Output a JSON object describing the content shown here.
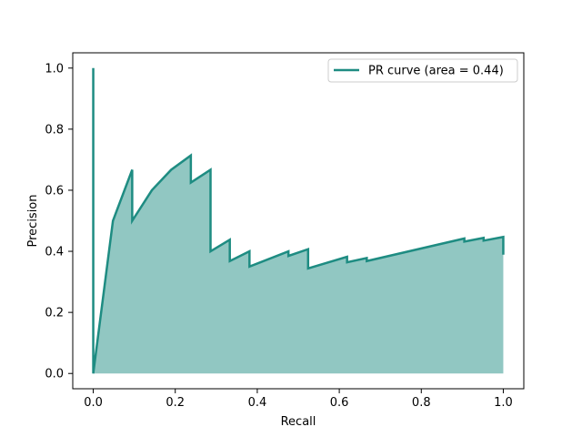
{
  "chart_data": {
    "type": "area",
    "title": "",
    "xlabel": "Recall",
    "ylabel": "Precision",
    "xlim": [
      -0.05,
      1.05
    ],
    "ylim": [
      -0.05,
      1.05
    ],
    "xticks": [
      "0.0",
      "0.2",
      "0.4",
      "0.6",
      "0.8",
      "1.0"
    ],
    "yticks": [
      "0.0",
      "0.2",
      "0.4",
      "0.6",
      "0.8",
      "1.0"
    ],
    "grid": false,
    "legend_position": "top-right",
    "series": [
      {
        "name": "PR curve (area = 0.44)",
        "color": "#1e8c82",
        "fill_color": "#91c7c2",
        "points": [
          [
            0.0,
            1.0
          ],
          [
            0.0,
            0.0
          ],
          [
            0.048,
            0.5
          ],
          [
            0.095,
            0.667
          ],
          [
            0.095,
            0.5
          ],
          [
            0.143,
            0.6
          ],
          [
            0.19,
            0.667
          ],
          [
            0.238,
            0.714
          ],
          [
            0.238,
            0.625
          ],
          [
            0.286,
            0.667
          ],
          [
            0.286,
            0.4
          ],
          [
            0.333,
            0.438
          ],
          [
            0.333,
            0.368
          ],
          [
            0.381,
            0.4
          ],
          [
            0.381,
            0.35
          ],
          [
            0.476,
            0.4
          ],
          [
            0.476,
            0.385
          ],
          [
            0.524,
            0.407
          ],
          [
            0.524,
            0.344
          ],
          [
            0.619,
            0.382
          ],
          [
            0.619,
            0.364
          ],
          [
            0.667,
            0.378
          ],
          [
            0.667,
            0.368
          ],
          [
            0.905,
            0.442
          ],
          [
            0.905,
            0.432
          ],
          [
            0.952,
            0.444
          ],
          [
            0.952,
            0.435
          ],
          [
            1.0,
            0.447
          ],
          [
            1.0,
            0.389
          ]
        ]
      }
    ]
  }
}
